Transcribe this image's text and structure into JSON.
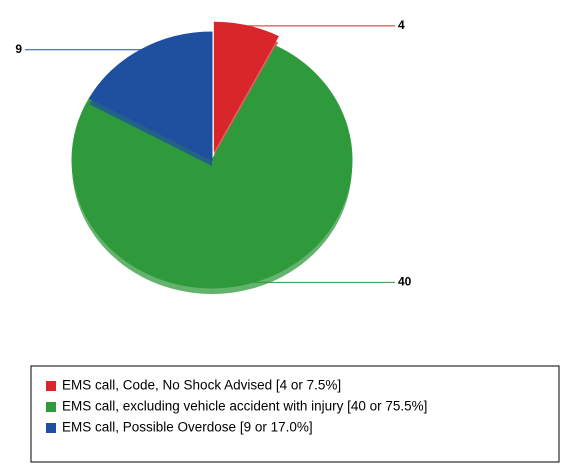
{
  "chart_data": {
    "type": "pie",
    "categories": [
      "EMS call, Code, No Shock Advised [4 or 7.5%]",
      "EMS call, excluding vehicle accident with injury [40 or 75.5%]",
      "EMS call, Possible Overdose [9 or 17.0%]"
    ],
    "values": [
      4,
      40,
      9
    ],
    "colors": [
      "#d8262b",
      "#2f9a3c",
      "#1f4f9f"
    ],
    "exploded": [
      true,
      false,
      false
    ]
  }
}
